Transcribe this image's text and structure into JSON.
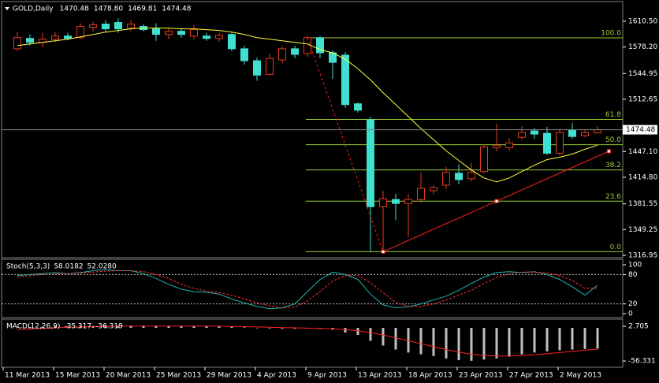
{
  "chart_data": [
    {
      "type": "candlestick",
      "title": "GOLD,Daily",
      "ohlc_value_labels": [
        "1470.48",
        "1478.80",
        "1469.81",
        "1474.48"
      ],
      "categories": [
        "11 Mar 2013",
        null,
        null,
        null,
        "15 Mar 2013",
        null,
        null,
        null,
        "20 Mar 2013",
        null,
        null,
        null,
        "25 Mar 2013",
        null,
        null,
        null,
        "29 Mar 2013",
        null,
        null,
        null,
        "4 Apr 2013",
        null,
        null,
        null,
        "9 Apr 2013",
        null,
        null,
        null,
        "13 Apr 2013",
        null,
        null,
        null,
        "18 Apr 2013",
        null,
        null,
        null,
        "23 Apr 2013",
        null,
        null,
        null,
        "27 Apr 2013",
        null,
        null,
        null,
        "2 May 2013",
        null,
        null
      ],
      "open": [
        1576,
        1589,
        1584,
        1588,
        1592,
        1590,
        1603,
        1607,
        1609,
        1602,
        1604,
        1601,
        1594,
        1598,
        1592,
        1592,
        1589,
        1594,
        1576,
        1561,
        1544,
        1562,
        1576,
        1570,
        1590,
        1571,
        1568,
        1507,
        1487,
        1378,
        1387,
        1382,
        1387,
        1398,
        1405,
        1420,
        1413,
        1422,
        1452,
        1452,
        1465,
        1473,
        1470,
        1445,
        1474,
        1467,
        1470.48
      ],
      "high": [
        1597,
        1594,
        1596,
        1597,
        1596,
        1608,
        1610,
        1612,
        1614,
        1612,
        1607,
        1608,
        1603,
        1602,
        1606,
        1596,
        1596,
        1596,
        1580,
        1565,
        1570,
        1579,
        1580,
        1592,
        1592,
        1574,
        1572,
        1509,
        1491,
        1398,
        1394,
        1394,
        1421,
        1405,
        1428,
        1431,
        1433,
        1456,
        1482,
        1464,
        1479,
        1477,
        1478,
        1476,
        1483,
        1474,
        1478.8
      ],
      "low": [
        1573,
        1580,
        1578,
        1584,
        1587,
        1588,
        1598,
        1597,
        1596,
        1598,
        1598,
        1586,
        1588,
        1590,
        1588,
        1586,
        1585,
        1573,
        1556,
        1536,
        1543,
        1558,
        1564,
        1566,
        1564,
        1538,
        1502,
        1496,
        1321,
        1322,
        1361,
        1340,
        1383,
        1393,
        1400,
        1406,
        1410,
        1420,
        1448,
        1448,
        1462,
        1463,
        1443,
        1442,
        1463,
        1465,
        1469.81
      ],
      "close": [
        1590,
        1584,
        1588,
        1592,
        1589,
        1604,
        1606,
        1601,
        1601,
        1607,
        1600,
        1594,
        1598,
        1594,
        1600,
        1589,
        1593,
        1576,
        1561,
        1543,
        1564,
        1576,
        1569,
        1590,
        1571,
        1559,
        1506,
        1499,
        1378,
        1388,
        1382,
        1387,
        1401,
        1402,
        1421,
        1412,
        1421,
        1453,
        1455,
        1458,
        1471,
        1469,
        1445,
        1471,
        1466,
        1471,
        1474.48
      ],
      "up_color": "#e03c1c",
      "down_color": "#40e0d0",
      "ma": {
        "color": "#ffff40",
        "values": [
          1580,
          1582,
          1584,
          1586,
          1588,
          1591,
          1594,
          1597,
          1599,
          1601,
          1602,
          1602,
          1602,
          1601,
          1601,
          1600,
          1599,
          1597,
          1594,
          1590,
          1588,
          1586,
          1584,
          1582,
          1575,
          1571,
          1563,
          1551,
          1537,
          1521,
          1506,
          1491,
          1476,
          1462,
          1448,
          1436,
          1424,
          1414,
          1409,
          1414,
          1422,
          1430,
          1437,
          1440,
          1444,
          1450,
          1455
        ]
      },
      "fibo": {
        "color": "#9acd32",
        "levels": [
          {
            "label": "100.0",
            "value": 1589.7
          },
          {
            "label": "61.8",
            "value": 1487.4
          },
          {
            "label": "50.0",
            "value": 1455.75
          },
          {
            "label": "38.2",
            "value": 1424.1
          },
          {
            "label": "23.6",
            "value": 1384.9
          },
          {
            "label": "0.0",
            "value": 1321.5
          }
        ]
      },
      "trendline": {
        "color": "#ff2020",
        "x": [
          29,
          38,
          46.9
        ],
        "y": [
          1321.5,
          1384.9,
          1447.5
        ]
      },
      "fibo_link": {
        "color": "#ff2020",
        "x": [
          23,
          29
        ],
        "y": [
          1589.7,
          1321.5
        ]
      },
      "ylim": [
        1314,
        1635.2
      ],
      "yticks": [
        {
          "value": 1610.5,
          "label": "1610.50"
        },
        {
          "value": 1578.2,
          "label": "1578.20"
        },
        1544.95,
        1512.65,
        {
          "value": 1447.1,
          "label": "1447.10"
        },
        {
          "value": 1414.8,
          "label": "1414.80"
        },
        1381.55,
        1349.25,
        1316.95
      ]
    },
    {
      "type": "line",
      "title": "Stoch(5,3,3)",
      "series": [
        {
          "color": "#20b2aa",
          "values": [
            78,
            80,
            82,
            84,
            82,
            84,
            88,
            90,
            88,
            88,
            82,
            72,
            60,
            50,
            45,
            44,
            40,
            30,
            22,
            15,
            10,
            12,
            20,
            45,
            70,
            85,
            80,
            70,
            40,
            18,
            12,
            14,
            20,
            28,
            36,
            48,
            62,
            75,
            84,
            86,
            84,
            86,
            80,
            70,
            55,
            38,
            58.0182
          ]
        },
        {
          "color": "#ff3030",
          "dashed": true,
          "last_label": "52.0280",
          "values": [
            75,
            78,
            80,
            82,
            82,
            83,
            85,
            87,
            88,
            88,
            86,
            80,
            72,
            60,
            52,
            46,
            43,
            38,
            30,
            22,
            16,
            12,
            14,
            26,
            45,
            67,
            78,
            78,
            63,
            43,
            23,
            15,
            15,
            20,
            28,
            38,
            48,
            62,
            74,
            82,
            85,
            85,
            83,
            78,
            68,
            52,
            52.028
          ]
        }
      ],
      "levels": [
        80,
        20
      ],
      "ylim": [
        -8,
        111.3
      ],
      "yticks": [
        100,
        80,
        20,
        0
      ]
    },
    {
      "type": "bar",
      "title": "MACD(12,26,9)",
      "color": "#c0c0c0",
      "values": [
        1,
        1.5,
        2,
        2.5,
        2.5,
        3,
        3.5,
        4,
        4,
        4,
        4,
        3.5,
        3.5,
        3,
        3,
        3,
        2.5,
        2,
        1,
        0,
        -1,
        -1.5,
        -1.5,
        -1,
        -1.5,
        -3,
        -8,
        -12,
        -22,
        -30,
        -37,
        -42,
        -45,
        -48,
        -52,
        -55,
        -56,
        -54,
        -52,
        -49,
        -45,
        -42,
        -40,
        -38,
        -37,
        -36,
        -35.317
      ],
      "signal": {
        "color": "#ff2020",
        "values": [
          -3,
          -2,
          -1,
          0,
          1,
          1.5,
          2,
          2.5,
          3,
          3,
          3,
          3,
          3,
          3,
          3,
          3,
          3,
          2.5,
          2,
          1.5,
          1,
          0.5,
          0,
          -0.5,
          -1,
          -1.5,
          -3,
          -5,
          -8,
          -12,
          -17,
          -22,
          -27,
          -32,
          -37,
          -41,
          -45,
          -47,
          -48,
          -48,
          -47,
          -46,
          -44,
          -42,
          -40,
          -38,
          -36.319
        ]
      },
      "ylim": [
        -67,
        14.8
      ],
      "yticks": [
        2.705,
        -56.331
      ]
    }
  ]
}
